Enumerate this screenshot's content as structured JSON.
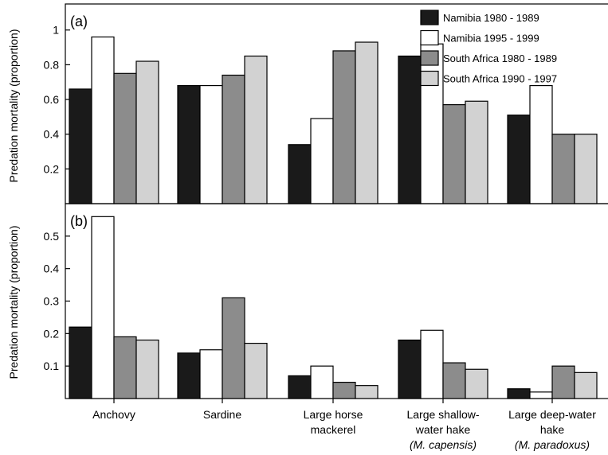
{
  "chart_data": [
    {
      "type": "bar",
      "panel_label": "(a)",
      "ylabel": "Predation mortality (proportion)",
      "ylim": [
        0,
        1.15
      ],
      "yticks": [
        0.2,
        0.4,
        0.6,
        0.8,
        1
      ],
      "ytick_labels": [
        "0.2",
        "0.4",
        "0.6",
        "0.8",
        "1"
      ],
      "categories": [
        "Anchovy",
        "Sardine",
        "Large horse mackerel",
        "Large shallow-water hake",
        "Large deep-water hake"
      ],
      "series": [
        {
          "name": "Namibia 1980 - 1989",
          "values": [
            0.66,
            0.68,
            0.34,
            0.85,
            0.51
          ]
        },
        {
          "name": "Namibia 1995 - 1999",
          "values": [
            0.96,
            0.68,
            0.49,
            0.92,
            0.68
          ]
        },
        {
          "name": "South Africa 1980 - 1989",
          "values": [
            0.75,
            0.74,
            0.88,
            0.57,
            0.4
          ]
        },
        {
          "name": "South Africa 1990 - 1997",
          "values": [
            0.82,
            0.85,
            0.93,
            0.59,
            0.4
          ]
        }
      ],
      "legend": "top-right",
      "grid": false
    },
    {
      "type": "bar",
      "panel_label": "(b)",
      "ylabel": "Predation mortality (proportion)",
      "ylim": [
        0,
        0.6
      ],
      "yticks": [
        0.1,
        0.2,
        0.3,
        0.4,
        0.5
      ],
      "ytick_labels": [
        "0.1",
        "0.2",
        "0.3",
        "0.4",
        "0.5"
      ],
      "categories": [
        "Anchovy",
        "Sardine",
        "Large horse mackerel",
        "Large shallow-water hake",
        "Large deep-water hake"
      ],
      "series": [
        {
          "name": "Namibia 1980 - 1989",
          "values": [
            0.22,
            0.14,
            0.07,
            0.18,
            0.03
          ]
        },
        {
          "name": "Namibia 1995 - 1999",
          "values": [
            0.56,
            0.15,
            0.1,
            0.21,
            0.02
          ]
        },
        {
          "name": "South Africa 1980 - 1989",
          "values": [
            0.19,
            0.31,
            0.05,
            0.11,
            0.1
          ]
        },
        {
          "name": "South Africa 1990 - 1997",
          "values": [
            0.18,
            0.17,
            0.04,
            0.09,
            0.08
          ]
        }
      ],
      "grid": false
    }
  ],
  "series_colors": [
    "#1a1a1a",
    "#ffffff",
    "#8c8c8c",
    "#d2d2d2"
  ],
  "category_labels": [
    {
      "lines": [
        "Anchovy"
      ],
      "italic_line": ""
    },
    {
      "lines": [
        "Sardine"
      ],
      "italic_line": ""
    },
    {
      "lines": [
        "Large horse",
        "mackerel"
      ],
      "italic_line": ""
    },
    {
      "lines": [
        "Large shallow-",
        "water hake"
      ],
      "italic_line": "(M. capensis)"
    },
    {
      "lines": [
        "Large deep-water",
        "hake"
      ],
      "italic_line": "(M. paradoxus)"
    }
  ]
}
